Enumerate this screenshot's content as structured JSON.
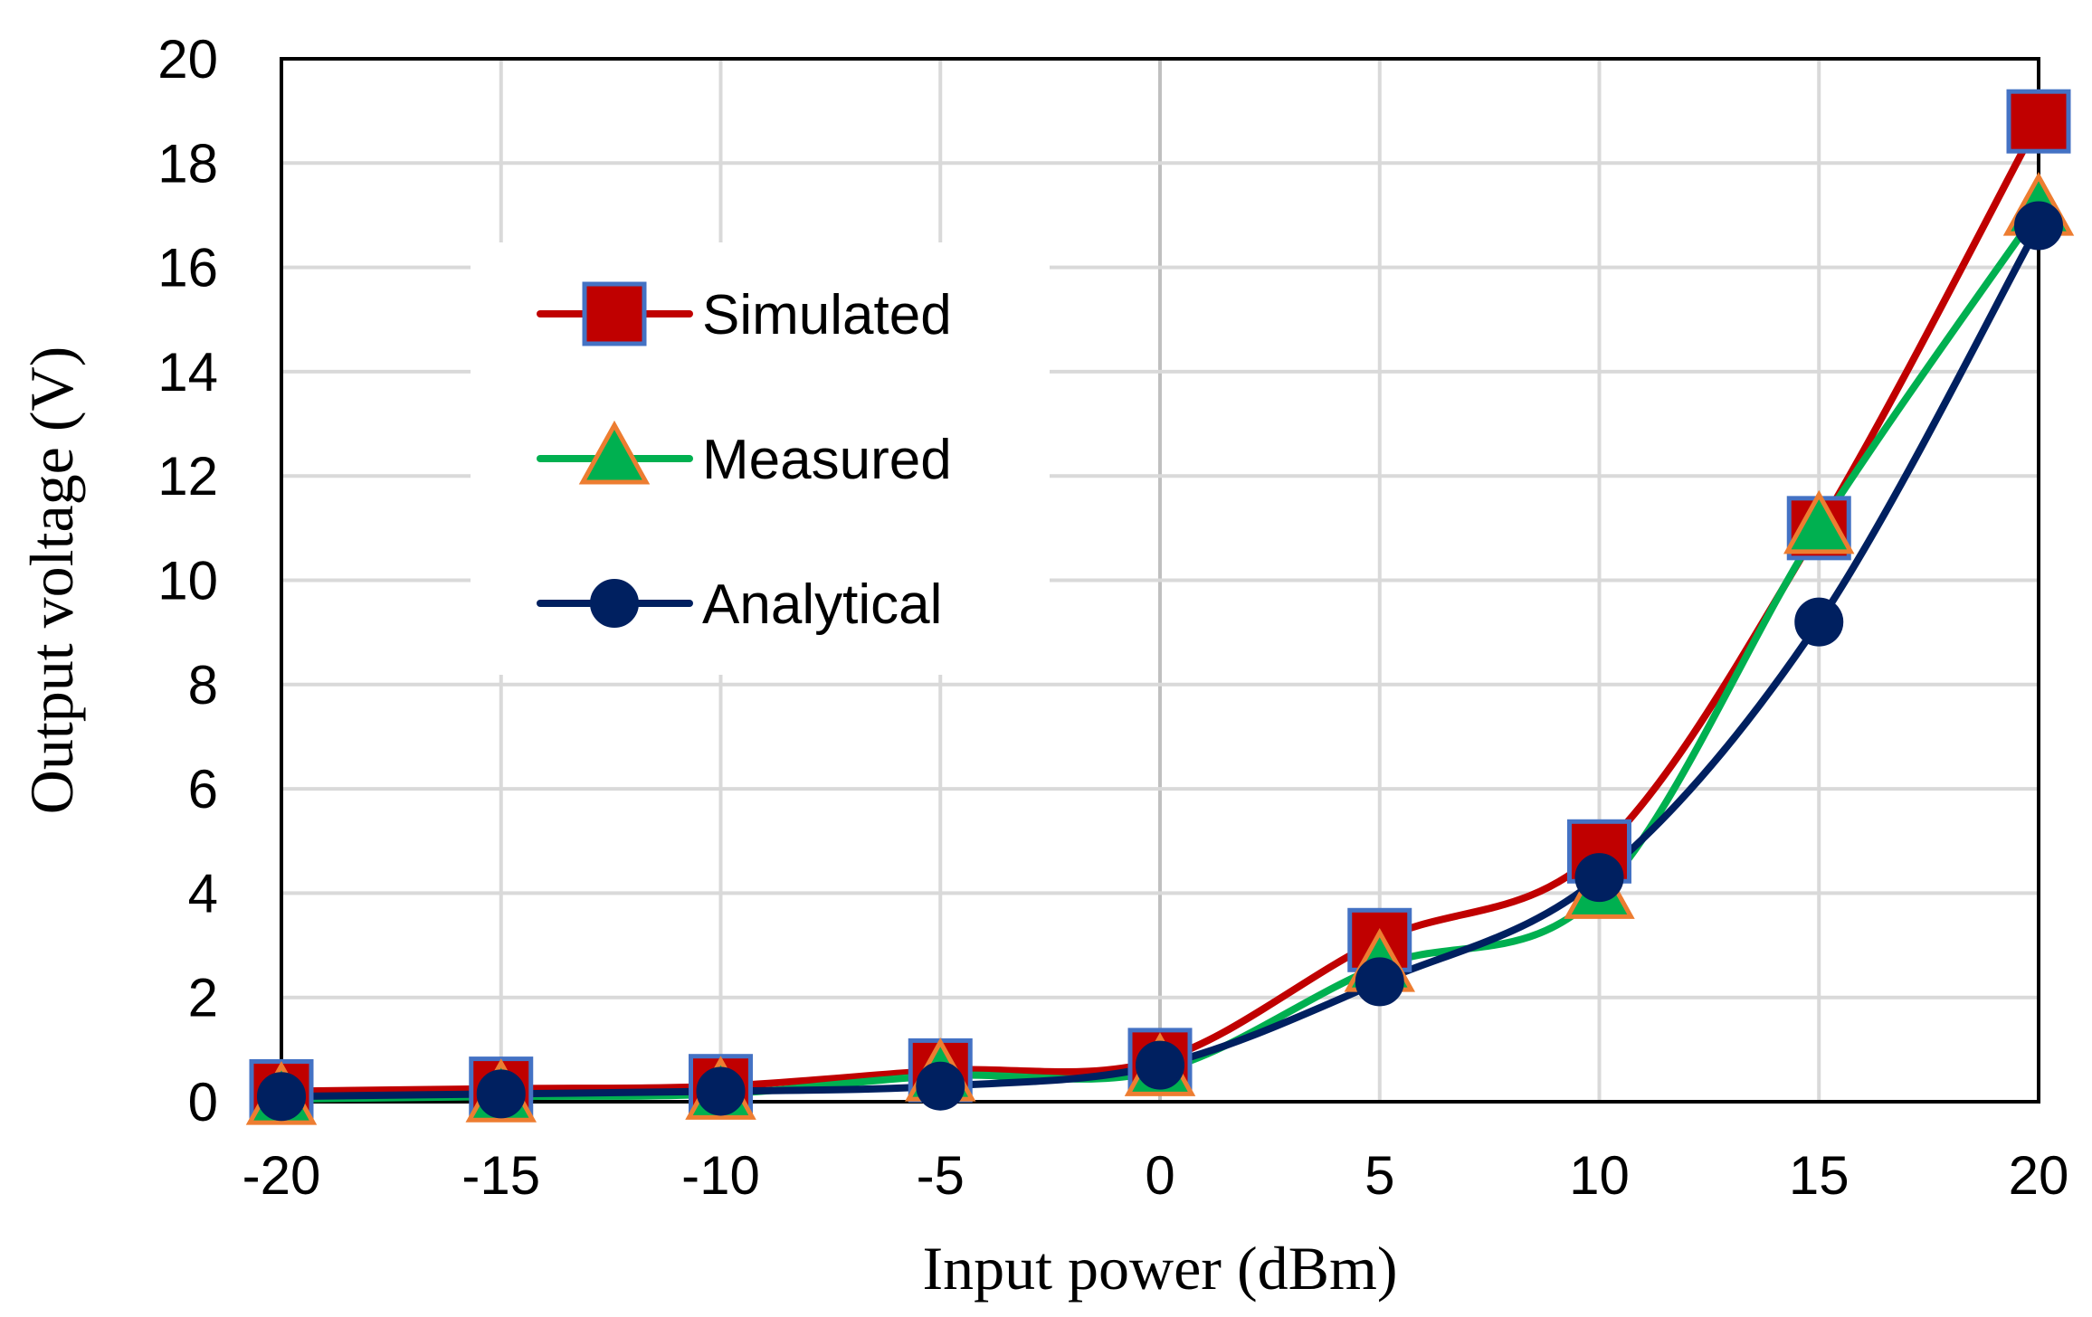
{
  "chart_data": {
    "type": "line",
    "title": "",
    "xlabel": "Input power (dBm)",
    "ylabel": "Output voltage (V)",
    "x": [
      -20,
      -15,
      -10,
      -5,
      0,
      5,
      10,
      15,
      20
    ],
    "xlim": [
      -20,
      20
    ],
    "ylim": [
      0,
      20
    ],
    "x_ticks": [
      "-20",
      "-15",
      "-10",
      "-5",
      "0",
      "5",
      "10",
      "15",
      "20"
    ],
    "y_ticks": [
      "0",
      "2",
      "4",
      "6",
      "8",
      "10",
      "12",
      "14",
      "16",
      "18",
      "20"
    ],
    "grid": true,
    "legend_position": "upper-left",
    "series": [
      {
        "name": "Simulated",
        "marker": "square",
        "line_color": "#c00000",
        "marker_fill": "#c00000",
        "marker_edge": "#4472c4",
        "values": [
          0.2,
          0.25,
          0.3,
          0.6,
          0.8,
          3.1,
          4.8,
          11.0,
          18.8
        ]
      },
      {
        "name": "Measured",
        "marker": "triangle",
        "line_color": "#00b050",
        "marker_fill": "#00b050",
        "marker_edge": "#ed7d31",
        "values": [
          0.05,
          0.1,
          0.15,
          0.5,
          0.6,
          2.6,
          4.0,
          11.0,
          17.1
        ]
      },
      {
        "name": "Analytical",
        "marker": "circle",
        "line_color": "#002060",
        "marker_fill": "#002060",
        "marker_edge": "#002060",
        "values": [
          0.1,
          0.15,
          0.2,
          0.3,
          0.7,
          2.3,
          4.3,
          9.2,
          16.8
        ]
      }
    ]
  }
}
